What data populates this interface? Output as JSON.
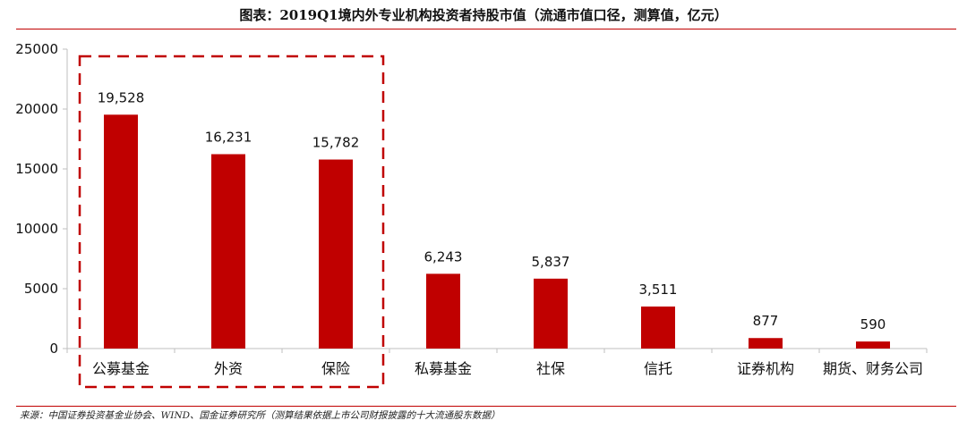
{
  "title": "图表：2019Q1境内外专业机构投资者持股市值（流通市值口径，测算值，亿元）",
  "source": "来源：中国证券投资基金业协会、WIND、国金证券研究所（测算结果依据上市公司财报披露的十大流通股东数据）",
  "colors": {
    "bar": "#c00000",
    "rule": "#c00000",
    "highlight_box": "#c00000",
    "axis": "#bfbfbf",
    "text": "#111111"
  },
  "chart_data": {
    "type": "bar",
    "categories": [
      "公募基金",
      "外资",
      "保险",
      "私募基金",
      "社保",
      "信托",
      "证券机构",
      "期货、财务公司"
    ],
    "values": [
      19528,
      16231,
      15782,
      6243,
      5837,
      3511,
      877,
      590
    ],
    "data_labels": [
      "19,528",
      "16,231",
      "15,782",
      "6,243",
      "5,837",
      "3,511",
      "877",
      "590"
    ],
    "ylim": [
      0,
      25000
    ],
    "yticks": [
      0,
      5000,
      10000,
      15000,
      20000,
      25000
    ],
    "ytick_labels": [
      "0",
      "5000",
      "10000",
      "15000",
      "20000",
      "25000"
    ],
    "xlabel": "",
    "ylabel": "",
    "grid": false,
    "legend": "none",
    "highlight_group": {
      "categories": [
        "公募基金",
        "外资",
        "保险"
      ],
      "style": "dashed-box"
    }
  }
}
